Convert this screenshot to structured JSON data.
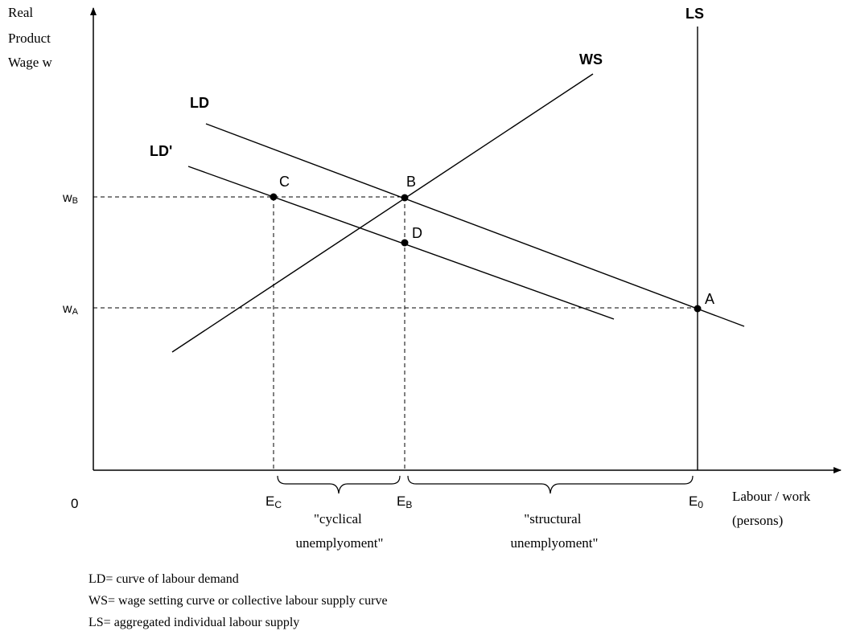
{
  "axes": {
    "y_label": [
      "Real",
      "Product",
      "Wage w"
    ],
    "x_label": [
      "Labour / work",
      "(persons)"
    ],
    "origin_label": "0"
  },
  "curves": {
    "ld": "LD",
    "ld_prime": "LD'",
    "ws": "WS",
    "ls": "LS"
  },
  "points": {
    "a": "A",
    "b": "B",
    "c": "C",
    "d": "D"
  },
  "wage_ticks": {
    "wb": {
      "main": "w",
      "sub": "B"
    },
    "wa": {
      "main": "w",
      "sub": "A"
    }
  },
  "employment_ticks": {
    "ec": {
      "main": "E",
      "sub": "C"
    },
    "eb": {
      "main": "E",
      "sub": "B"
    },
    "e0": {
      "main": "E",
      "sub": "0"
    }
  },
  "brackets": {
    "cyclical": [
      "\"cyclical",
      "unemplyoment\""
    ],
    "structural": [
      "\"structural",
      "unemplyoment\""
    ]
  },
  "legend": [
    "LD= curve of labour demand",
    "WS= wage setting curve or collective labour supply curve",
    "LS= aggregated individual labour supply"
  ]
}
